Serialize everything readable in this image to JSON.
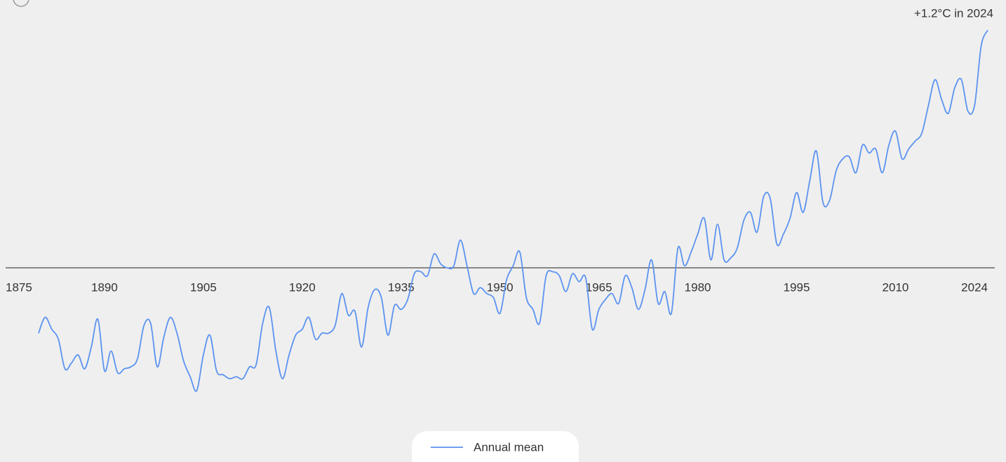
{
  "chart_data": {
    "type": "line",
    "annotation": "+1.2°C in 2024",
    "x": [
      1880,
      1881,
      1882,
      1883,
      1884,
      1885,
      1886,
      1887,
      1888,
      1889,
      1890,
      1891,
      1892,
      1893,
      1894,
      1895,
      1896,
      1897,
      1898,
      1899,
      1900,
      1901,
      1902,
      1903,
      1904,
      1905,
      1906,
      1907,
      1908,
      1909,
      1910,
      1911,
      1912,
      1913,
      1914,
      1915,
      1916,
      1917,
      1918,
      1919,
      1920,
      1921,
      1922,
      1923,
      1924,
      1925,
      1926,
      1927,
      1928,
      1929,
      1930,
      1931,
      1932,
      1933,
      1934,
      1935,
      1936,
      1937,
      1938,
      1939,
      1940,
      1941,
      1942,
      1943,
      1944,
      1945,
      1946,
      1947,
      1948,
      1949,
      1950,
      1951,
      1952,
      1953,
      1954,
      1955,
      1956,
      1957,
      1958,
      1959,
      1960,
      1961,
      1962,
      1963,
      1964,
      1965,
      1966,
      1967,
      1968,
      1969,
      1970,
      1971,
      1972,
      1973,
      1974,
      1975,
      1976,
      1977,
      1978,
      1979,
      1980,
      1981,
      1982,
      1983,
      1984,
      1985,
      1986,
      1987,
      1988,
      1989,
      1990,
      1991,
      1992,
      1993,
      1994,
      1995,
      1996,
      1997,
      1998,
      1999,
      2000,
      2001,
      2002,
      2003,
      2004,
      2005,
      2006,
      2007,
      2008,
      2009,
      2010,
      2011,
      2012,
      2013,
      2014,
      2015,
      2016,
      2017,
      2018,
      2019,
      2020,
      2021,
      2022,
      2023,
      2024
    ],
    "series": [
      {
        "name": "Annual mean",
        "color": "#5b93f0",
        "values": [
          -0.33,
          -0.25,
          -0.31,
          -0.36,
          -0.51,
          -0.48,
          -0.44,
          -0.51,
          -0.4,
          -0.26,
          -0.52,
          -0.42,
          -0.53,
          -0.51,
          -0.5,
          -0.46,
          -0.29,
          -0.28,
          -0.5,
          -0.35,
          -0.25,
          -0.33,
          -0.47,
          -0.55,
          -0.62,
          -0.44,
          -0.34,
          -0.52,
          -0.54,
          -0.56,
          -0.55,
          -0.56,
          -0.5,
          -0.49,
          -0.28,
          -0.2,
          -0.42,
          -0.56,
          -0.44,
          -0.34,
          -0.31,
          -0.25,
          -0.36,
          -0.33,
          -0.33,
          -0.29,
          -0.13,
          -0.24,
          -0.22,
          -0.4,
          -0.2,
          -0.11,
          -0.15,
          -0.34,
          -0.19,
          -0.21,
          -0.16,
          -0.03,
          -0.02,
          -0.04,
          0.07,
          0.02,
          0.0,
          0.01,
          0.14,
          0.01,
          -0.13,
          -0.1,
          -0.13,
          -0.15,
          -0.23,
          -0.06,
          0.01,
          0.08,
          -0.15,
          -0.21,
          -0.28,
          -0.04,
          -0.02,
          -0.04,
          -0.12,
          -0.03,
          -0.07,
          -0.05,
          -0.31,
          -0.21,
          -0.16,
          -0.13,
          -0.18,
          -0.04,
          -0.1,
          -0.21,
          -0.11,
          0.04,
          -0.18,
          -0.12,
          -0.23,
          0.1,
          0.01,
          0.08,
          0.17,
          0.25,
          0.04,
          0.22,
          0.04,
          0.05,
          0.1,
          0.24,
          0.28,
          0.18,
          0.36,
          0.35,
          0.12,
          0.17,
          0.25,
          0.38,
          0.28,
          0.44,
          0.59,
          0.33,
          0.34,
          0.49,
          0.55,
          0.56,
          0.48,
          0.62,
          0.58,
          0.6,
          0.48,
          0.62,
          0.69,
          0.55,
          0.6,
          0.64,
          0.68,
          0.82,
          0.95,
          0.85,
          0.78,
          0.91,
          0.95,
          0.79,
          0.82,
          1.12,
          1.2
        ]
      }
    ],
    "xlim": [
      1875,
      2024
    ],
    "xticks": [
      1875,
      1890,
      1905,
      1920,
      1935,
      1950,
      1965,
      1980,
      1995,
      2010,
      2024
    ],
    "ylim": [
      -0.9,
      1.3
    ],
    "legend": "bottom"
  }
}
